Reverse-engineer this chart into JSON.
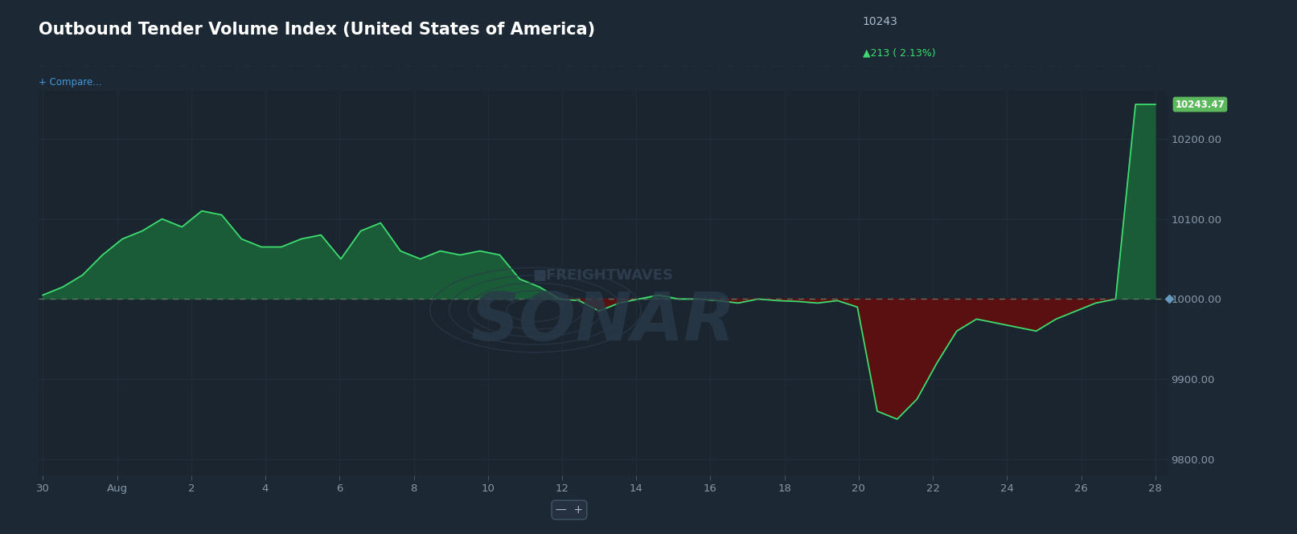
{
  "title": "Outbound Tender Volume Index (United States of America)",
  "current_value": "10243",
  "change_value": "▲213 ( 2.13%)",
  "current_value_label": "10243.47",
  "bg_color": "#1c2833",
  "plot_bg_color": "#1a2530",
  "line_color": "#3ddc6e",
  "fill_above_color": "#1a5c38",
  "fill_below_color": "#5a1010",
  "reference_line": 10000.0,
  "reference_line_color": "#6a7a6a",
  "ylim_min": 9780,
  "ylim_max": 10260,
  "yticks": [
    9800,
    9900,
    10000,
    10100,
    10200
  ],
  "x_tick_labels": [
    "30",
    "Aug",
    "2",
    "4",
    "6",
    "8",
    "10",
    "12",
    "14",
    "16",
    "18",
    "20",
    "22",
    "24",
    "26",
    "28"
  ],
  "compare_text": "+ Compare...",
  "freightwaves_text": "■FREIGHTWAVES",
  "sonar_text": "SONAR",
  "data_x": [
    0,
    0.5,
    1,
    1.5,
    2,
    2.5,
    3,
    3.5,
    4,
    4.5,
    5,
    5.5,
    6,
    6.5,
    7,
    7.5,
    8,
    8.5,
    9,
    9.5,
    10,
    10.5,
    11,
    11.5,
    12,
    12.5,
    13,
    13.5,
    14,
    14.5,
    15,
    15.5,
    16,
    16.5,
    17,
    17.5,
    18,
    18.5,
    19,
    19.5,
    20,
    20.5,
    21,
    21.5,
    22,
    22.5,
    23,
    23.5,
    24,
    24.5,
    25,
    25.5,
    26,
    26.5,
    27,
    27.5,
    28
  ],
  "data_y": [
    10005,
    10015,
    10030,
    10055,
    10075,
    10085,
    10100,
    10090,
    10110,
    10105,
    10075,
    10065,
    10065,
    10075,
    10080,
    10050,
    10085,
    10095,
    10060,
    10050,
    10060,
    10055,
    10060,
    10055,
    10025,
    10015,
    10000,
    9998,
    9985,
    9995,
    10000,
    10005,
    10000,
    10000,
    9998,
    9995,
    10000,
    9998,
    9997,
    9995,
    9998,
    9990,
    9860,
    9850,
    9875,
    9920,
    9960,
    9975,
    9970,
    9965,
    9960,
    9975,
    9985,
    9995,
    10000,
    10243,
    10243
  ]
}
